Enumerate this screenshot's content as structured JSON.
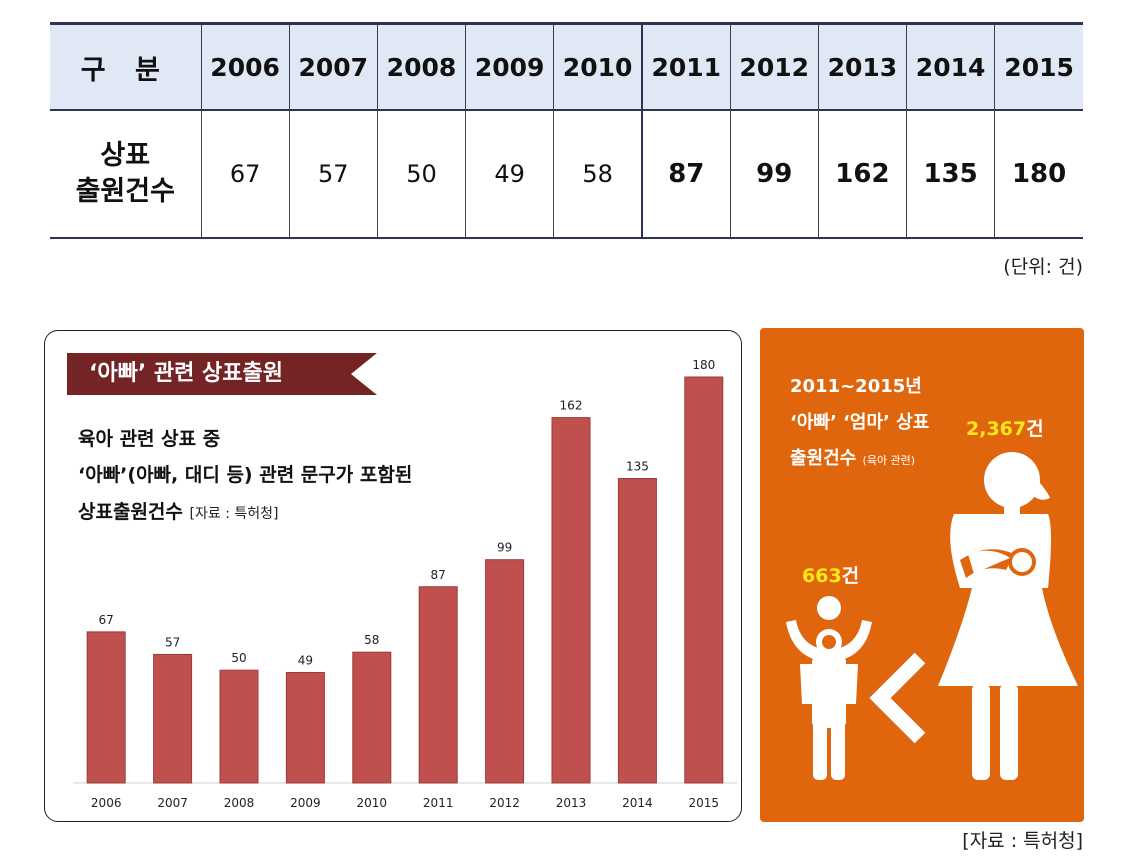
{
  "table": {
    "header_label": "구 분",
    "row_label_line1": "상표",
    "row_label_line2": "출원건수",
    "years": [
      "2006",
      "2007",
      "2008",
      "2009",
      "2010",
      "2011",
      "2012",
      "2013",
      "2014",
      "2015"
    ],
    "values": [
      "67",
      "57",
      "50",
      "49",
      "58",
      "87",
      "99",
      "162",
      "135",
      "180"
    ],
    "unit_note": "(단위:  건)"
  },
  "chart_panel": {
    "banner": "‘아빠’ 관련 상표출원",
    "desc_line1": "육아 관련 상표 중",
    "desc_line2": "‘아빠’(아빠, 대디 등) 관련 문구가 포함된",
    "desc_line3": "상표출원건수",
    "desc_source": "[자료 : 특허청]"
  },
  "chart_data": {
    "type": "bar",
    "categories": [
      "2006",
      "2007",
      "2008",
      "2009",
      "2010",
      "2011",
      "2012",
      "2013",
      "2014",
      "2015"
    ],
    "values": [
      67,
      57,
      50,
      49,
      58,
      87,
      99,
      162,
      135,
      180
    ],
    "title": "‘아빠’ 관련 상표출원",
    "xlabel": "",
    "ylabel": "",
    "ylim": [
      0,
      180
    ],
    "grid": false,
    "data_labels": true,
    "bar_color": "#c0504d"
  },
  "info_panel": {
    "line1": "2011~2015년",
    "line2": "‘아빠’ ‘엄마’ 상표",
    "line3": "출원건수",
    "line3_small": "(육아 관련)",
    "mom_count": "2,367",
    "dad_count": "663",
    "unit": "건",
    "bg_color": "#e0660e",
    "highlight_color": "#ffe71a",
    "icons": [
      "father-with-child-icon",
      "less-than-icon",
      "mother-holding-baby-icon"
    ]
  },
  "source_note": "[자료 :  특허청]"
}
